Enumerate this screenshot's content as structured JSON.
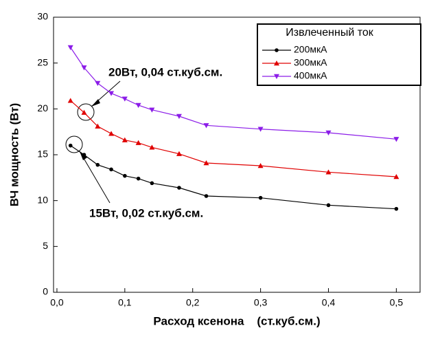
{
  "chart_data": {
    "type": "line",
    "x_label": "Расход ксенона    (ст.куб.см.)",
    "y_label": "ВЧ мощность (Вт)",
    "legend_title": "Извлеченный ток",
    "annotations": [
      "20Вт, 0,04 ст.куб.см.",
      "15Вт, 0,02 ст.куб.см."
    ],
    "x": [
      0.02,
      0.04,
      0.06,
      0.08,
      0.1,
      0.12,
      0.14,
      0.18,
      0.22,
      0.3,
      0.4,
      0.5
    ],
    "series": [
      {
        "name": "200мкА",
        "color": "#000000",
        "marker": "circle",
        "values": [
          16.0,
          15.0,
          13.9,
          13.4,
          12.7,
          12.4,
          11.9,
          11.4,
          10.5,
          10.3,
          9.5,
          9.1
        ]
      },
      {
        "name": "300мкА",
        "color": "#e00000",
        "marker": "triangle-up",
        "values": [
          20.9,
          19.6,
          18.1,
          17.3,
          16.6,
          16.3,
          15.8,
          15.1,
          14.1,
          13.8,
          13.1,
          12.6
        ]
      },
      {
        "name": "400мкА",
        "color": "#8b1ce8",
        "marker": "triangle-down",
        "values": [
          26.7,
          24.5,
          22.8,
          21.7,
          21.1,
          20.4,
          19.9,
          19.2,
          18.2,
          17.8,
          17.4,
          16.7
        ]
      }
    ],
    "xlim": [
      -0.005,
      0.535
    ],
    "xticks": [
      {
        "value": 0,
        "label": "0,0"
      },
      {
        "value": 0.1,
        "label": "0,1"
      },
      {
        "value": 0.2,
        "label": "0,2"
      },
      {
        "value": 0.3,
        "label": "0,3"
      },
      {
        "value": 0.4,
        "label": "0,4"
      },
      {
        "value": 0.5,
        "label": "0,5"
      }
    ],
    "ylim": [
      0,
      30
    ],
    "yticks": [
      0,
      5,
      10,
      15,
      20,
      25,
      30
    ],
    "grid": false
  }
}
